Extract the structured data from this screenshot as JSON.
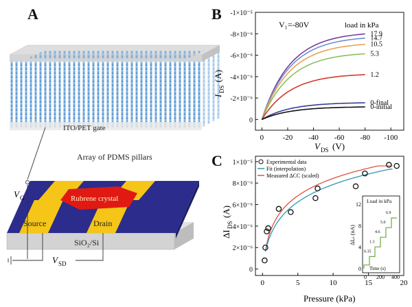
{
  "panels": {
    "a": "A",
    "b": "B",
    "c": "C"
  },
  "schematic": {
    "gate_label": "ITO/PET gate",
    "pillars_label": "Array of PDMS pillars",
    "crystal_label": "Rubrene crystal",
    "source_label": "Source",
    "drain_label": "Drain",
    "substrate_label": "SiO₂/Si",
    "vg_main": "V",
    "vg_sub": "G",
    "vsd_main": "V",
    "vsd_sub": "SD"
  },
  "chart_data": [
    {
      "id": "B",
      "type": "line",
      "title": "",
      "annotation_vg": "V₁=-80V",
      "legend_title": "load in kPa",
      "xlabel_main": "V",
      "xlabel_sub": "DS",
      "xlabel_unit": "(V)",
      "ylabel_main": "I",
      "ylabel_sub": "DS",
      "ylabel_unit": "(A)",
      "xlim": [
        5,
        -110
      ],
      "ylim": [
        1e-06,
        -1e-05
      ],
      "xticks": [
        0,
        -20,
        -40,
        -60,
        -80,
        -100
      ],
      "xtick_labels": [
        "0",
        "-20",
        "-40",
        "-60",
        "-80",
        "-100"
      ],
      "yticks": [
        0,
        -2e-06,
        -4e-06,
        -6e-06,
        -8e-06,
        -1e-05
      ],
      "ytick_labels": [
        "0",
        "-2×10⁻⁶",
        "-4×10⁻⁶",
        "-6×10⁻⁶",
        "-8×10⁻⁶",
        "-1×10⁻⁵"
      ],
      "series": [
        {
          "name": "17.9",
          "color": "#7a3d9a",
          "sat": -8.2e-06
        },
        {
          "name": "14.7",
          "color": "#6a8fd0",
          "sat": -7.8e-06
        },
        {
          "name": "10.5",
          "color": "#e8a050",
          "sat": -7.2e-06
        },
        {
          "name": "5.3",
          "color": "#88c060",
          "sat": -6.3e-06
        },
        {
          "name": "1.2",
          "color": "#d0392a",
          "sat": -4.3e-06
        },
        {
          "name": "0-final",
          "color": "#3a3a9a",
          "sat": -1.6e-06
        },
        {
          "name": "0-initial",
          "color": "#111111",
          "sat": -1.2e-06
        }
      ]
    },
    {
      "id": "C",
      "type": "scatter",
      "xlabel": "Pressure (kPa)",
      "ylabel_main": "ΔI",
      "ylabel_sub": "DS",
      "ylabel_unit": "(A)",
      "xlim": [
        -1,
        20
      ],
      "ylim": [
        -6e-07,
        1.05e-05
      ],
      "xticks": [
        0,
        5,
        10,
        15,
        20
      ],
      "xtick_labels": [
        "0",
        "5",
        "10",
        "15",
        "20"
      ],
      "yticks": [
        0,
        2e-06,
        4e-06,
        6e-06,
        8e-06,
        1e-05
      ],
      "ytick_labels": [
        "0",
        "2×10⁻⁶",
        "4×10⁻⁶",
        "6×10⁻⁶",
        "8×10⁻⁶",
        "1×10⁻⁵"
      ],
      "legend": [
        "Experimental data",
        "Fit (interpolation)",
        "Measured ΔCC (scaled)"
      ],
      "points": [
        {
          "x": 0.3,
          "y": 8e-07
        },
        {
          "x": 0.4,
          "y": 2e-06
        },
        {
          "x": 0.6,
          "y": 3.5e-06
        },
        {
          "x": 0.8,
          "y": 3.8e-06
        },
        {
          "x": 2.3,
          "y": 5.6e-06
        },
        {
          "x": 4.0,
          "y": 5.3e-06
        },
        {
          "x": 7.5,
          "y": 6.6e-06
        },
        {
          "x": 7.8,
          "y": 7.5e-06
        },
        {
          "x": 13.2,
          "y": 7.7e-06
        },
        {
          "x": 14.5,
          "y": 8.9e-06
        },
        {
          "x": 17.9,
          "y": 9.7e-06
        },
        {
          "x": 19.0,
          "y": 9.6e-06
        }
      ],
      "inset": {
        "title": "Load in kPa",
        "ylabel": "ΔIₒₛ (nA)",
        "xlabel": "Time (s)",
        "xticks": [
          "0",
          "200",
          "400"
        ],
        "yticks": [
          "0",
          "4",
          "8",
          "12"
        ],
        "step_labels": [
          "0.35",
          "1.3",
          "4.6",
          "5.0",
          "6.9"
        ]
      }
    }
  ]
}
